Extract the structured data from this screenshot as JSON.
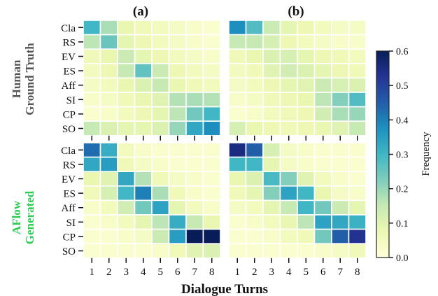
{
  "chart_data": {
    "type": "heatmap",
    "panel_titles": [
      "(a)",
      "(b)"
    ],
    "row_group_labels": [
      {
        "lines": [
          "Human",
          "Ground Truth"
        ],
        "color": "#555555"
      },
      {
        "lines": [
          "AFlow",
          "Generated"
        ],
        "color": "#2ecc55"
      }
    ],
    "xlabel": "Dialogue Turns",
    "x_ticks": [
      "1",
      "2",
      "3",
      "4",
      "5",
      "6",
      "7",
      "8"
    ],
    "y_ticks": [
      "Cla",
      "RS",
      "EV",
      "ES",
      "Aff",
      "SI",
      "CP",
      "SO"
    ],
    "colorbar": {
      "label": "Frequency",
      "range": [
        0.0,
        0.6
      ],
      "ticks": [
        "0.0",
        "0.1",
        "0.2",
        "0.3",
        "0.4",
        "0.5",
        "0.6"
      ],
      "colormap": "YlGnBu"
    },
    "panels": [
      {
        "name": "human-a",
        "values": [
          [
            0.3,
            0.18,
            0.08,
            0.06,
            0.05,
            0.04,
            0.03,
            0.02
          ],
          [
            0.16,
            0.25,
            0.09,
            0.07,
            0.05,
            0.04,
            0.03,
            0.02
          ],
          [
            0.06,
            0.08,
            0.14,
            0.09,
            0.07,
            0.05,
            0.04,
            0.03
          ],
          [
            0.05,
            0.07,
            0.15,
            0.26,
            0.14,
            0.07,
            0.05,
            0.04
          ],
          [
            0.04,
            0.05,
            0.08,
            0.11,
            0.15,
            0.08,
            0.06,
            0.05
          ],
          [
            0.03,
            0.04,
            0.06,
            0.08,
            0.1,
            0.17,
            0.18,
            0.17
          ],
          [
            0.02,
            0.03,
            0.05,
            0.07,
            0.09,
            0.16,
            0.24,
            0.3
          ],
          [
            0.15,
            0.11,
            0.09,
            0.09,
            0.11,
            0.2,
            0.33,
            0.38
          ]
        ]
      },
      {
        "name": "human-b",
        "values": [
          [
            0.38,
            0.28,
            0.14,
            0.09,
            0.07,
            0.05,
            0.04,
            0.04
          ],
          [
            0.15,
            0.15,
            0.12,
            0.07,
            0.05,
            0.04,
            0.03,
            0.03
          ],
          [
            0.06,
            0.08,
            0.11,
            0.12,
            0.09,
            0.07,
            0.06,
            0.05
          ],
          [
            0.05,
            0.06,
            0.1,
            0.13,
            0.11,
            0.09,
            0.07,
            0.06
          ],
          [
            0.04,
            0.05,
            0.07,
            0.09,
            0.1,
            0.14,
            0.12,
            0.11
          ],
          [
            0.03,
            0.04,
            0.06,
            0.07,
            0.08,
            0.16,
            0.22,
            0.28
          ],
          [
            0.02,
            0.03,
            0.05,
            0.06,
            0.07,
            0.13,
            0.18,
            0.2
          ],
          [
            0.12,
            0.08,
            0.07,
            0.06,
            0.07,
            0.08,
            0.1,
            0.15
          ]
        ]
      },
      {
        "name": "generated-a",
        "values": [
          [
            0.43,
            0.32,
            0.05,
            0.03,
            0.02,
            0.02,
            0.02,
            0.02
          ],
          [
            0.33,
            0.35,
            0.06,
            0.04,
            0.03,
            0.02,
            0.02,
            0.02
          ],
          [
            0.08,
            0.1,
            0.33,
            0.17,
            0.06,
            0.04,
            0.03,
            0.02
          ],
          [
            0.06,
            0.12,
            0.3,
            0.4,
            0.18,
            0.06,
            0.03,
            0.02
          ],
          [
            0.03,
            0.05,
            0.13,
            0.24,
            0.34,
            0.09,
            0.05,
            0.03
          ],
          [
            0.02,
            0.03,
            0.05,
            0.09,
            0.16,
            0.32,
            0.15,
            0.08
          ],
          [
            0.02,
            0.02,
            0.03,
            0.04,
            0.14,
            0.35,
            0.6,
            0.6
          ],
          [
            0.02,
            0.02,
            0.02,
            0.02,
            0.03,
            0.06,
            0.1,
            0.11
          ]
        ]
      },
      {
        "name": "generated-b",
        "values": [
          [
            0.55,
            0.45,
            0.12,
            0.04,
            0.03,
            0.02,
            0.02,
            0.02
          ],
          [
            0.3,
            0.3,
            0.09,
            0.04,
            0.03,
            0.02,
            0.02,
            0.02
          ],
          [
            0.08,
            0.11,
            0.29,
            0.22,
            0.1,
            0.05,
            0.03,
            0.02
          ],
          [
            0.06,
            0.09,
            0.22,
            0.34,
            0.3,
            0.08,
            0.04,
            0.03
          ],
          [
            0.04,
            0.05,
            0.09,
            0.15,
            0.3,
            0.24,
            0.14,
            0.09
          ],
          [
            0.02,
            0.03,
            0.05,
            0.08,
            0.16,
            0.34,
            0.33,
            0.31
          ],
          [
            0.02,
            0.02,
            0.03,
            0.05,
            0.06,
            0.24,
            0.45,
            0.53
          ],
          [
            0.02,
            0.02,
            0.02,
            0.02,
            0.02,
            0.03,
            0.04,
            0.06
          ]
        ]
      }
    ]
  }
}
